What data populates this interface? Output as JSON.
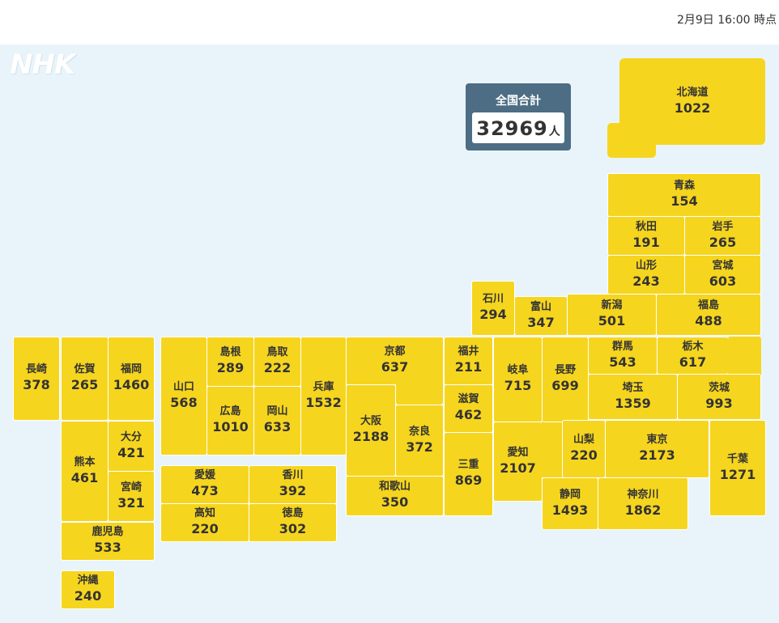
{
  "timestamp": "2月9日 16:00 時点",
  "logo": "NHK",
  "total": {
    "label": "全国合計",
    "value": "32969",
    "unit": "人"
  },
  "prefectures": {
    "hokkaido": {
      "name": "北海道",
      "count": "1022"
    },
    "aomori": {
      "name": "青森",
      "count": "154"
    },
    "akita": {
      "name": "秋田",
      "count": "191"
    },
    "iwate": {
      "name": "岩手",
      "count": "265"
    },
    "yamagata": {
      "name": "山形",
      "count": "243"
    },
    "miyagi": {
      "name": "宮城",
      "count": "603"
    },
    "ishikawa": {
      "name": "石川",
      "count": "294"
    },
    "toyama": {
      "name": "富山",
      "count": "347"
    },
    "niigata": {
      "name": "新潟",
      "count": "501"
    },
    "fukushima": {
      "name": "福島",
      "count": "488"
    },
    "nagasaki": {
      "name": "長崎",
      "count": "378"
    },
    "saga": {
      "name": "佐賀",
      "count": "265"
    },
    "fukuoka": {
      "name": "福岡",
      "count": "1460"
    },
    "yamaguchi": {
      "name": "山口",
      "count": "568"
    },
    "shimane": {
      "name": "島根",
      "count": "289"
    },
    "tottori": {
      "name": "鳥取",
      "count": "222"
    },
    "hyogo": {
      "name": "兵庫",
      "count": "1532"
    },
    "kyoto": {
      "name": "京都",
      "count": "637"
    },
    "fukui": {
      "name": "福井",
      "count": "211"
    },
    "gifu": {
      "name": "岐阜",
      "count": "715"
    },
    "nagano": {
      "name": "長野",
      "count": "699"
    },
    "gunma": {
      "name": "群馬",
      "count": "543"
    },
    "tochigi": {
      "name": "栃木",
      "count": "617"
    },
    "ibaraki": {
      "name": "茨城",
      "count": "993"
    },
    "saitama": {
      "name": "埼玉",
      "count": "1359"
    },
    "kumamoto": {
      "name": "熊本",
      "count": "461"
    },
    "oita": {
      "name": "大分",
      "count": "421"
    },
    "miyazaki": {
      "name": "宮崎",
      "count": "321"
    },
    "hiroshima": {
      "name": "広島",
      "count": "1010"
    },
    "okayama": {
      "name": "岡山",
      "count": "633"
    },
    "osaka": {
      "name": "大阪",
      "count": "2188"
    },
    "nara": {
      "name": "奈良",
      "count": "372"
    },
    "shiga": {
      "name": "滋賀",
      "count": "462"
    },
    "mie": {
      "name": "三重",
      "count": "869"
    },
    "aichi": {
      "name": "愛知",
      "count": "2107"
    },
    "yamanashi": {
      "name": "山梨",
      "count": "220"
    },
    "tokyo": {
      "name": "東京",
      "count": "2173"
    },
    "chiba": {
      "name": "千葉",
      "count": "1271"
    },
    "ehime": {
      "name": "愛媛",
      "count": "473"
    },
    "kagawa": {
      "name": "香川",
      "count": "392"
    },
    "kochi": {
      "name": "高知",
      "count": "220"
    },
    "tokushima": {
      "name": "徳島",
      "count": "302"
    },
    "wakayama": {
      "name": "和歌山",
      "count": "350"
    },
    "shizuoka": {
      "name": "静岡",
      "count": "1493"
    },
    "kanagawa": {
      "name": "神奈川",
      "count": "1862"
    },
    "kagoshima": {
      "name": "鹿児島",
      "count": "533"
    },
    "okinawa": {
      "name": "沖縄",
      "count": "240"
    }
  }
}
